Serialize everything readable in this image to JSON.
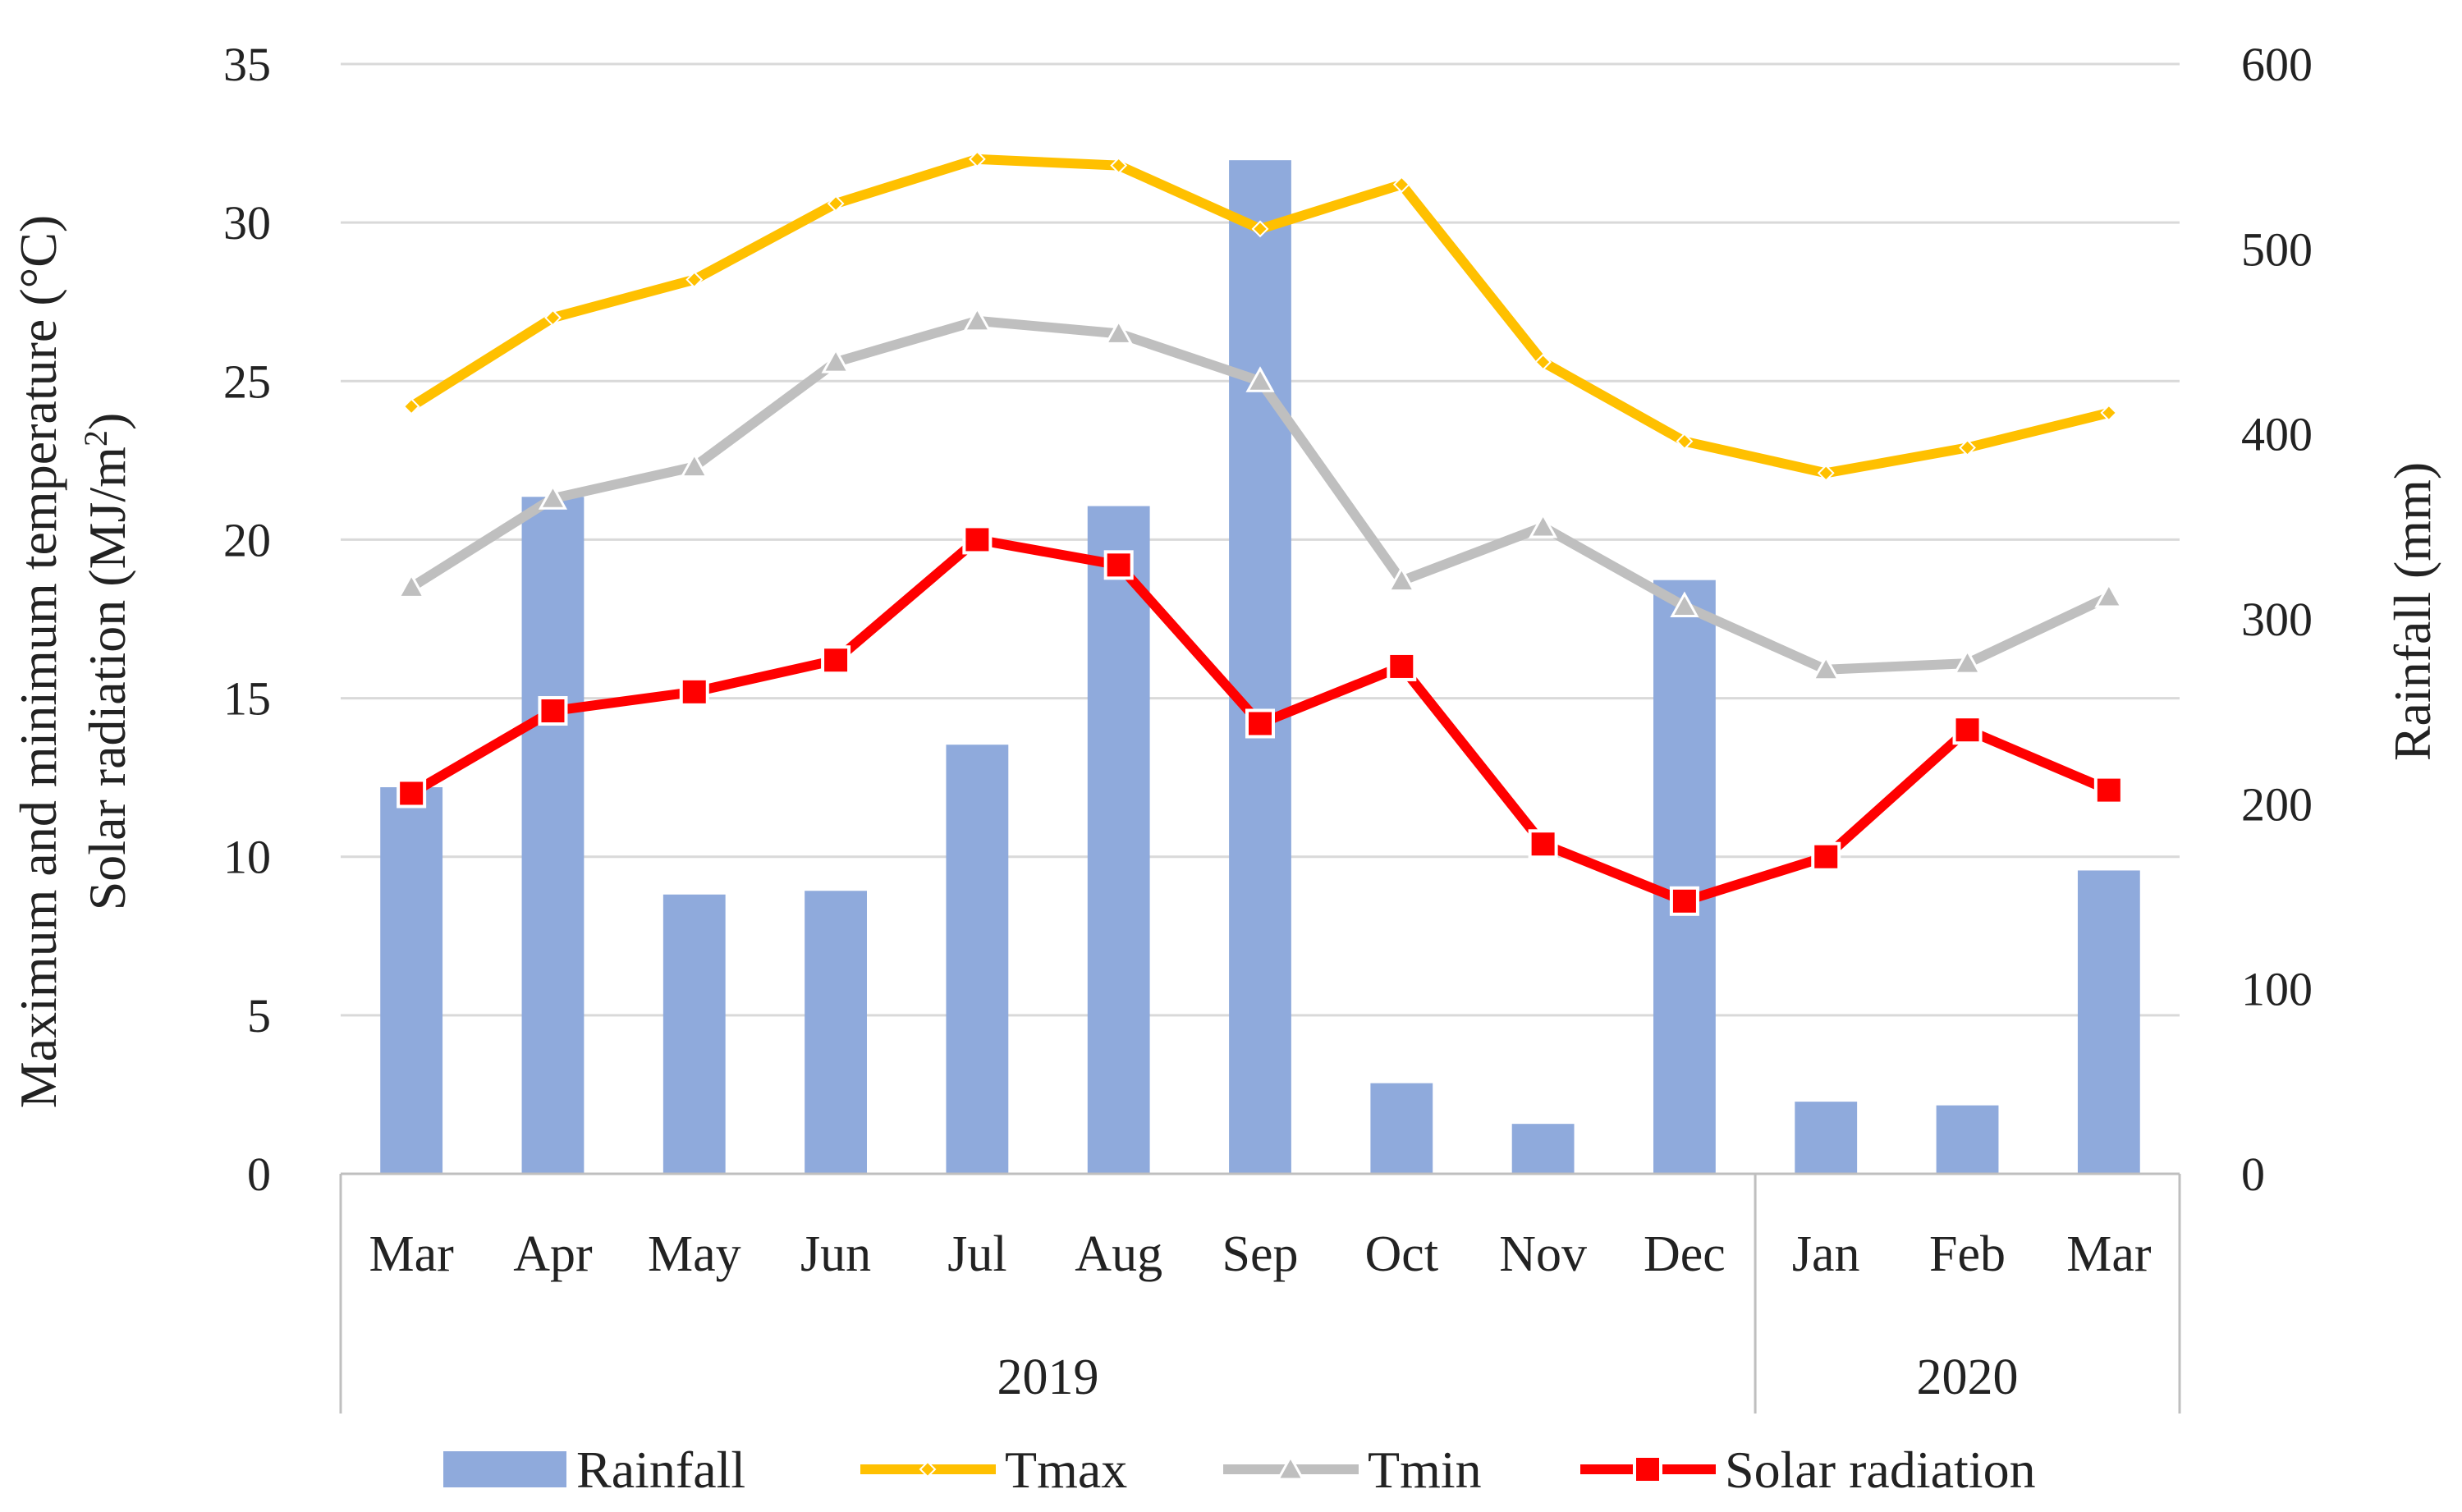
{
  "chart_data": {
    "type": "bar+line",
    "categories": [
      "Mar",
      "Apr",
      "May",
      "Jun",
      "Jul",
      "Aug",
      "Sep",
      "Oct",
      "Nov",
      "Dec",
      "Jan",
      "Feb",
      "Mar"
    ],
    "year_groups": [
      {
        "label": "2019",
        "count": 10
      },
      {
        "label": "2020",
        "count": 3
      }
    ],
    "y_left": {
      "label_line1": "Maximum and minimum temperature (°C)",
      "label_line2_prefix": "Solar radiation (MJ/m",
      "label_line2_sup": "2",
      "label_line2_suffix": ")",
      "min": 0,
      "max": 35,
      "step": 5,
      "ticks": [
        "0",
        "5",
        "10",
        "15",
        "20",
        "25",
        "30",
        "35"
      ]
    },
    "y_right": {
      "label": "Rainfall (mm)",
      "min": 0,
      "max": 600,
      "step": 100,
      "ticks": [
        "0",
        "100",
        "200",
        "300",
        "400",
        "500",
        "600"
      ]
    },
    "series": [
      {
        "name": "Rainfall",
        "kind": "bar",
        "axis": "right",
        "color": "#8faadc",
        "values": [
          209,
          366,
          151,
          153,
          232,
          361,
          548,
          49,
          27,
          321,
          39,
          37,
          164
        ]
      },
      {
        "name": "Tmax",
        "kind": "line",
        "axis": "left",
        "color": "#ffc000",
        "marker": "diamond",
        "values": [
          24.2,
          27.0,
          28.2,
          30.6,
          32.0,
          31.8,
          29.8,
          31.2,
          25.6,
          23.1,
          22.1,
          22.9,
          24.0
        ]
      },
      {
        "name": "Tmin",
        "kind": "line",
        "axis": "left",
        "color": "#bfbfbf",
        "marker": "triangle",
        "values": [
          18.5,
          21.3,
          22.3,
          25.6,
          26.9,
          26.5,
          25.0,
          18.7,
          20.4,
          17.9,
          15.9,
          16.1,
          18.2
        ]
      },
      {
        "name": "Solar radiation",
        "kind": "line",
        "axis": "left",
        "color": "#ff0000",
        "marker": "square",
        "values": [
          12.0,
          14.6,
          15.2,
          16.2,
          20.0,
          19.2,
          14.2,
          16.0,
          10.4,
          8.6,
          10.0,
          14.0,
          12.1
        ]
      }
    ],
    "legend": [
      "Rainfall",
      "Tmax",
      "Tmin",
      "Solar radiation"
    ],
    "legend_position": "bottom",
    "grid": true
  }
}
